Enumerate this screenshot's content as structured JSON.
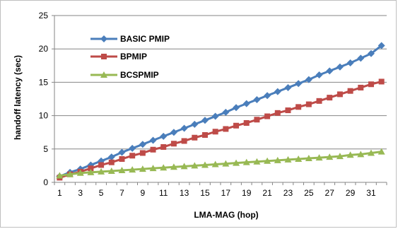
{
  "chart_data": {
    "type": "line",
    "title": "",
    "xlabel": "LMA-MAG (hop)",
    "ylabel": "handoff latency (sec)",
    "x": [
      1,
      2,
      3,
      4,
      5,
      6,
      7,
      8,
      9,
      10,
      11,
      12,
      13,
      14,
      15,
      16,
      17,
      18,
      19,
      20,
      21,
      22,
      23,
      24,
      25,
      26,
      27,
      28,
      29,
      30,
      31,
      32
    ],
    "x_tick_labels": [
      "1",
      "3",
      "5",
      "7",
      "9",
      "11",
      "13",
      "15",
      "17",
      "19",
      "21",
      "23",
      "25",
      "27",
      "29",
      "31"
    ],
    "y_tick_labels": [
      "0",
      "5",
      "10",
      "15",
      "20",
      "25"
    ],
    "xlim": [
      0.5,
      32.5
    ],
    "ylim": [
      0,
      25
    ],
    "grid": true,
    "legend_position": "top-left",
    "series": [
      {
        "name": "BASIC PMIP",
        "color": "#4a7ebb",
        "marker": "diamond",
        "values": [
          0.9,
          1.5,
          2.0,
          2.6,
          3.2,
          3.8,
          4.5,
          5.1,
          5.7,
          6.3,
          6.9,
          7.5,
          8.1,
          8.7,
          9.3,
          9.9,
          10.5,
          11.2,
          11.8,
          12.4,
          13.0,
          13.6,
          14.2,
          14.8,
          15.4,
          16.1,
          16.7,
          17.3,
          17.9,
          18.6,
          19.3,
          20.5
        ]
      },
      {
        "name": "BPMIP",
        "color": "#be4b48",
        "marker": "square",
        "values": [
          0.7,
          1.2,
          1.6,
          2.1,
          2.6,
          3.0,
          3.5,
          4.0,
          4.4,
          4.9,
          5.3,
          5.8,
          6.2,
          6.7,
          7.1,
          7.6,
          8.0,
          8.5,
          8.9,
          9.4,
          9.9,
          10.4,
          10.8,
          11.3,
          11.7,
          12.2,
          12.7,
          13.2,
          13.7,
          14.2,
          14.7,
          15.1
        ]
      },
      {
        "name": "BCSPMIP",
        "color": "#98b954",
        "marker": "triangle",
        "values": [
          1.0,
          1.2,
          1.4,
          1.5,
          1.6,
          1.7,
          1.8,
          1.9,
          2.0,
          2.1,
          2.2,
          2.3,
          2.4,
          2.5,
          2.6,
          2.7,
          2.8,
          2.9,
          3.0,
          3.1,
          3.2,
          3.3,
          3.4,
          3.5,
          3.6,
          3.7,
          3.8,
          3.9,
          4.1,
          4.2,
          4.4,
          4.6
        ]
      }
    ]
  }
}
